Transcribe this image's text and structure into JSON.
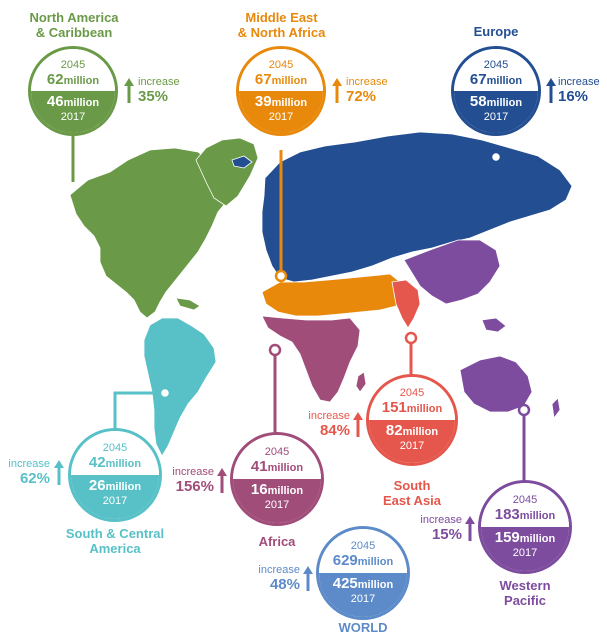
{
  "regions": {
    "na": {
      "title_line1": "North America",
      "title_line2": "& Caribbean",
      "year_top": "2045",
      "value_top": "62",
      "year_bottom": "2017",
      "value_bottom": "46",
      "unit": "million",
      "increase_label": "increase",
      "increase_pct": "35%",
      "color": "#6a9a48"
    },
    "mena": {
      "title_line1": "Middle East",
      "title_line2": "& North Africa",
      "year_top": "2045",
      "value_top": "67",
      "year_bottom": "2017",
      "value_bottom": "39",
      "unit": "million",
      "increase_label": "increase",
      "increase_pct": "72%",
      "color": "#e8890c"
    },
    "europe": {
      "title_line1": "Europe",
      "year_top": "2045",
      "value_top": "67",
      "year_bottom": "2017",
      "value_bottom": "58",
      "unit": "million",
      "increase_label": "increase",
      "increase_pct": "16%",
      "color": "#234e92"
    },
    "sca": {
      "title_line1": "South & Central",
      "title_line2": "America",
      "year_top": "2045",
      "value_top": "42",
      "year_bottom": "2017",
      "value_bottom": "26",
      "unit": "million",
      "increase_label": "increase",
      "increase_pct": "62%",
      "color": "#57c1c7"
    },
    "africa": {
      "title_line1": "Africa",
      "year_top": "2045",
      "value_top": "41",
      "year_bottom": "2017",
      "value_bottom": "16",
      "unit": "million",
      "increase_label": "increase",
      "increase_pct": "156%",
      "color": "#a04d7a"
    },
    "sea": {
      "title_line1": "South",
      "title_line2": "East Asia",
      "year_top": "2045",
      "value_top": "151",
      "year_bottom": "2017",
      "value_bottom": "82",
      "unit": "million",
      "increase_label": "increase",
      "increase_pct": "84%",
      "color": "#e5574c"
    },
    "world": {
      "title_line1": "WORLD",
      "year_top": "2045",
      "value_top": "629",
      "year_bottom": "2017",
      "value_bottom": "425",
      "unit": "million",
      "increase_label": "increase",
      "increase_pct": "48%",
      "color": "#5d8bc9"
    },
    "wp": {
      "title_line1": "Western",
      "title_line2": "Pacific",
      "year_top": "2045",
      "value_top": "183",
      "year_bottom": "2017",
      "value_bottom": "159",
      "unit": "million",
      "increase_label": "increase",
      "increase_pct": "15%",
      "color": "#7d4c9e"
    }
  },
  "map_colors": {
    "north_america": "#6a9a48",
    "south_central_america": "#57c1c7",
    "europe": "#234e92",
    "mena": "#e8890c",
    "africa": "#a04d7a",
    "south_east_asia": "#e5574c",
    "western_pacific": "#7d4c9e"
  }
}
